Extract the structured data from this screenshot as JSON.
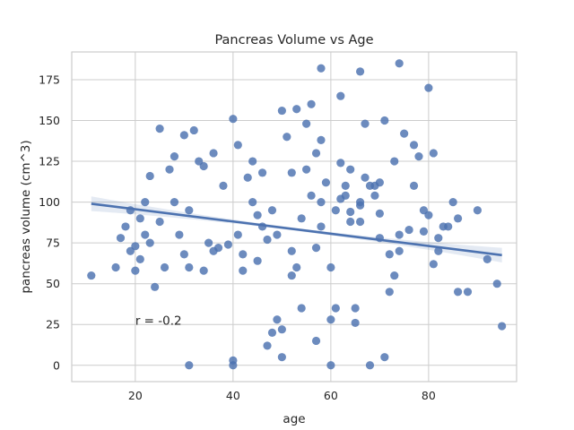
{
  "chart_data": {
    "type": "scatter",
    "title": "Pancreas Volume vs Age",
    "xlabel": "age",
    "ylabel": "pancreas volume (cm^3)",
    "xlim": [
      7,
      98
    ],
    "ylim": [
      -10,
      192
    ],
    "x_ticks": [
      20,
      40,
      60,
      80
    ],
    "y_ticks": [
      0,
      25,
      50,
      75,
      100,
      125,
      150,
      175
    ],
    "grid": true,
    "annotation": {
      "text": "r = -0.2",
      "x": 20,
      "y": 27
    },
    "regression": {
      "x": [
        11,
        95
      ],
      "y": [
        99,
        67.5
      ],
      "ci_halfwidth_at_ends": 4.5
    },
    "marker_color": "#4c72b0",
    "line_color": "#4c72b0",
    "series": [
      {
        "x": [
          11,
          16,
          17,
          18,
          19,
          19,
          20,
          20,
          21,
          21,
          22,
          22,
          23,
          23,
          24,
          25,
          25,
          26,
          27,
          28,
          28,
          29,
          30,
          30,
          31,
          31,
          32,
          33,
          34,
          35,
          36,
          37,
          38,
          40,
          40,
          41,
          42,
          43,
          44,
          45,
          46,
          47,
          48,
          49,
          50,
          50,
          51,
          52,
          53,
          54,
          55,
          56,
          56,
          57,
          58,
          58,
          59,
          60,
          61,
          62,
          62,
          63,
          64,
          65,
          66,
          66,
          67,
          68,
          69,
          70,
          70,
          71,
          72,
          73,
          74,
          74,
          75,
          76,
          77,
          78,
          79,
          80,
          81,
          82,
          84,
          85,
          86,
          88,
          90,
          92,
          94,
          95,
          58,
          66,
          74,
          81,
          63,
          52,
          49,
          60,
          72,
          65,
          48,
          57,
          41,
          31,
          40,
          62,
          68,
          71,
          50,
          55,
          67,
          73,
          54,
          44,
          47,
          80,
          83,
          86,
          42,
          58,
          61,
          39,
          36,
          34,
          46,
          52,
          53,
          66,
          77,
          79,
          82,
          60,
          64,
          70,
          45,
          57,
          64,
          69
        ],
        "y": [
          55,
          60,
          78,
          85,
          95,
          70,
          58,
          73,
          90,
          65,
          80,
          100,
          116,
          75,
          48,
          145,
          88,
          60,
          120,
          100,
          128,
          80,
          141,
          68,
          0,
          95,
          144,
          125,
          122,
          75,
          130,
          72,
          110,
          0,
          151,
          135,
          58,
          115,
          125,
          92,
          118,
          12,
          95,
          28,
          156,
          5,
          140,
          118,
          157,
          35,
          148,
          160,
          104,
          130,
          138,
          182,
          112,
          28,
          35,
          124,
          102,
          104,
          120,
          26,
          180,
          100,
          148,
          110,
          104,
          112,
          93,
          150,
          68,
          125,
          185,
          80,
          142,
          83,
          135,
          128,
          82,
          170,
          130,
          78,
          85,
          100,
          90,
          45,
          95,
          65,
          50,
          24,
          85,
          98,
          70,
          62,
          110,
          55,
          80,
          0,
          45,
          35,
          20,
          15,
          80,
          60,
          3,
          165,
          0,
          5,
          22,
          120,
          115,
          55,
          90,
          100,
          77,
          92,
          85,
          45,
          68,
          100,
          95,
          74,
          70,
          58,
          85,
          70,
          60,
          88,
          110,
          95,
          70,
          60,
          88,
          78,
          64,
          72,
          94,
          110
        ]
      }
    ]
  }
}
